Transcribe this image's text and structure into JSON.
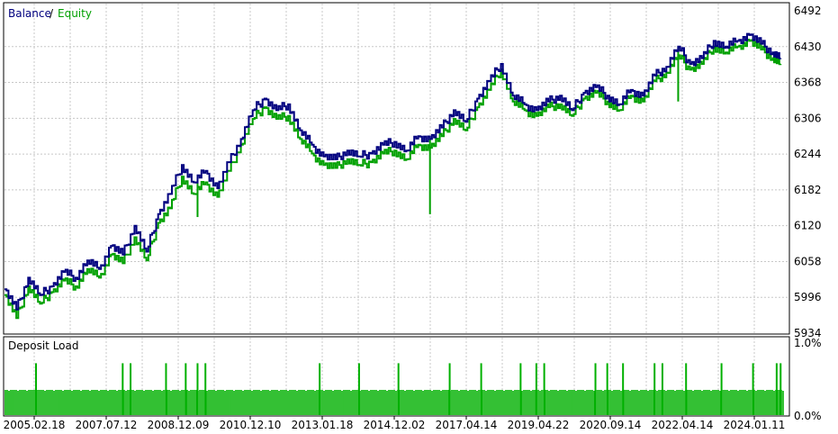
{
  "colors": {
    "balance": "#00007f",
    "equity": "#00a000",
    "deposit_load": "#00b000",
    "grid": "#c8c8c8",
    "frame": "#000000"
  },
  "legend": {
    "balance_label": "Balance",
    "equity_label": "Equity",
    "separator": "/"
  },
  "load_panel_title": "Deposit Load",
  "chart_data": [
    {
      "type": "line",
      "title": "",
      "series": [
        {
          "name": "Balance",
          "x": [
            2005.0,
            2005.3,
            2005.6,
            2005.9,
            2006.2,
            2006.5,
            2006.8,
            2007.1,
            2007.4,
            2007.7,
            2008.0,
            2008.3,
            2008.6,
            2008.9,
            2009.2,
            2009.5,
            2009.8,
            2010.1,
            2010.4,
            2010.7,
            2011.0,
            2011.3,
            2011.6,
            2011.9,
            2012.2,
            2012.5,
            2012.8,
            2013.1,
            2013.4,
            2013.7,
            2014.0,
            2014.3,
            2014.6,
            2014.9,
            2015.2,
            2015.5,
            2015.8,
            2016.1,
            2016.4,
            2016.7,
            2017.0,
            2017.3,
            2017.6,
            2017.9,
            2018.2,
            2018.5,
            2018.8,
            2019.1,
            2019.4,
            2019.7,
            2020.0,
            2020.3,
            2020.6,
            2020.9,
            2021.2,
            2021.5,
            2021.8,
            2022.1,
            2022.4,
            2022.7,
            2023.0,
            2023.3,
            2023.6,
            2023.9,
            2024.2,
            2024.5,
            2024.7
          ],
          "y": [
            6010,
            5975,
            6030,
            6000,
            6015,
            6040,
            6030,
            6060,
            6045,
            6085,
            6070,
            6120,
            6075,
            6140,
            6175,
            6225,
            6195,
            6215,
            6185,
            6230,
            6270,
            6320,
            6340,
            6320,
            6330,
            6285,
            6260,
            6240,
            6235,
            6250,
            6240,
            6245,
            6260,
            6265,
            6250,
            6275,
            6270,
            6290,
            6320,
            6300,
            6340,
            6370,
            6400,
            6345,
            6330,
            6320,
            6335,
            6345,
            6320,
            6350,
            6360,
            6345,
            6330,
            6355,
            6345,
            6380,
            6395,
            6430,
            6400,
            6410,
            6440,
            6430,
            6440,
            6450,
            6435,
            6420,
            6410
          ]
        },
        {
          "name": "Equity",
          "x": [
            2005.0,
            2005.3,
            2005.6,
            2005.9,
            2006.2,
            2006.5,
            2006.8,
            2007.1,
            2007.4,
            2007.7,
            2008.0,
            2008.3,
            2008.6,
            2008.9,
            2009.2,
            2009.5,
            2009.8,
            2010.1,
            2010.4,
            2010.7,
            2011.0,
            2011.3,
            2011.6,
            2011.9,
            2012.2,
            2012.5,
            2012.8,
            2013.1,
            2013.4,
            2013.7,
            2014.0,
            2014.3,
            2014.6,
            2014.9,
            2015.2,
            2015.5,
            2015.8,
            2016.1,
            2016.4,
            2016.7,
            2017.0,
            2017.3,
            2017.6,
            2017.9,
            2018.2,
            2018.5,
            2018.8,
            2019.1,
            2019.4,
            2019.7,
            2020.0,
            2020.3,
            2020.6,
            2020.9,
            2021.2,
            2021.5,
            2021.8,
            2022.1,
            2022.4,
            2022.7,
            2023.0,
            2023.3,
            2023.6,
            2023.9,
            2024.2,
            2024.5,
            2024.7
          ],
          "y": [
            6000,
            5960,
            6015,
            5985,
            6005,
            6025,
            6015,
            6045,
            6030,
            6070,
            6055,
            6100,
            6060,
            6125,
            6150,
            6205,
            6175,
            6195,
            6170,
            6215,
            6260,
            6305,
            6325,
            6305,
            6310,
            6270,
            6245,
            6225,
            6220,
            6235,
            6225,
            6230,
            6245,
            6250,
            6235,
            6260,
            6255,
            6275,
            6305,
            6285,
            6325,
            6355,
            6390,
            6335,
            6320,
            6310,
            6325,
            6330,
            6310,
            6340,
            6350,
            6335,
            6320,
            6345,
            6335,
            6370,
            6385,
            6415,
            6390,
            6400,
            6430,
            6420,
            6430,
            6440,
            6425,
            6410,
            6400
          ]
        }
      ],
      "equity_spikes": [
        {
          "x": 2009.9,
          "y": 6135
        },
        {
          "x": 2015.8,
          "y": 6140
        },
        {
          "x": 2022.1,
          "y": 6335
        }
      ],
      "xlabel": "",
      "ylabel": "",
      "ylim": [
        5934,
        6492
      ],
      "yticks": [
        "6492",
        "6430",
        "6368",
        "6306",
        "6244",
        "6182",
        "6120",
        "6058",
        "5996",
        "5934"
      ],
      "xlim": [
        2005.0,
        2024.9
      ],
      "xticks": [
        "2005.02.18",
        "2007.07.12",
        "2008.12.09",
        "2010.12.10",
        "2013.01.18",
        "2014.12.02",
        "2017.04.14",
        "2019.04.22",
        "2020.09.14",
        "2022.04.14",
        "2024.01.11"
      ],
      "grid": true,
      "legend": "top-left"
    },
    {
      "type": "bar",
      "title": "Deposit Load",
      "ylim": [
        0,
        1.0
      ],
      "yticks": [
        "1.0%",
        "0.0%"
      ],
      "baseline_load": 0.35,
      "spikes": [
        {
          "x": 2005.8,
          "value": 0.72
        },
        {
          "x": 2008.0,
          "value": 0.72
        },
        {
          "x": 2008.2,
          "value": 0.72
        },
        {
          "x": 2009.1,
          "value": 0.72
        },
        {
          "x": 2009.6,
          "value": 0.72
        },
        {
          "x": 2009.9,
          "value": 0.72
        },
        {
          "x": 2010.1,
          "value": 0.72
        },
        {
          "x": 2013.0,
          "value": 0.72
        },
        {
          "x": 2014.0,
          "value": 0.72
        },
        {
          "x": 2015.0,
          "value": 0.72
        },
        {
          "x": 2016.3,
          "value": 0.72
        },
        {
          "x": 2017.1,
          "value": 0.72
        },
        {
          "x": 2018.1,
          "value": 0.72
        },
        {
          "x": 2018.5,
          "value": 0.72
        },
        {
          "x": 2018.7,
          "value": 0.72
        },
        {
          "x": 2020.0,
          "value": 0.72
        },
        {
          "x": 2020.3,
          "value": 0.72
        },
        {
          "x": 2020.7,
          "value": 0.72
        },
        {
          "x": 2021.5,
          "value": 0.72
        },
        {
          "x": 2021.7,
          "value": 0.72
        },
        {
          "x": 2022.3,
          "value": 0.72
        },
        {
          "x": 2023.2,
          "value": 0.72
        },
        {
          "x": 2024.0,
          "value": 0.72
        },
        {
          "x": 2024.6,
          "value": 0.72
        },
        {
          "x": 2024.7,
          "value": 0.72
        }
      ],
      "grid": true
    }
  ]
}
